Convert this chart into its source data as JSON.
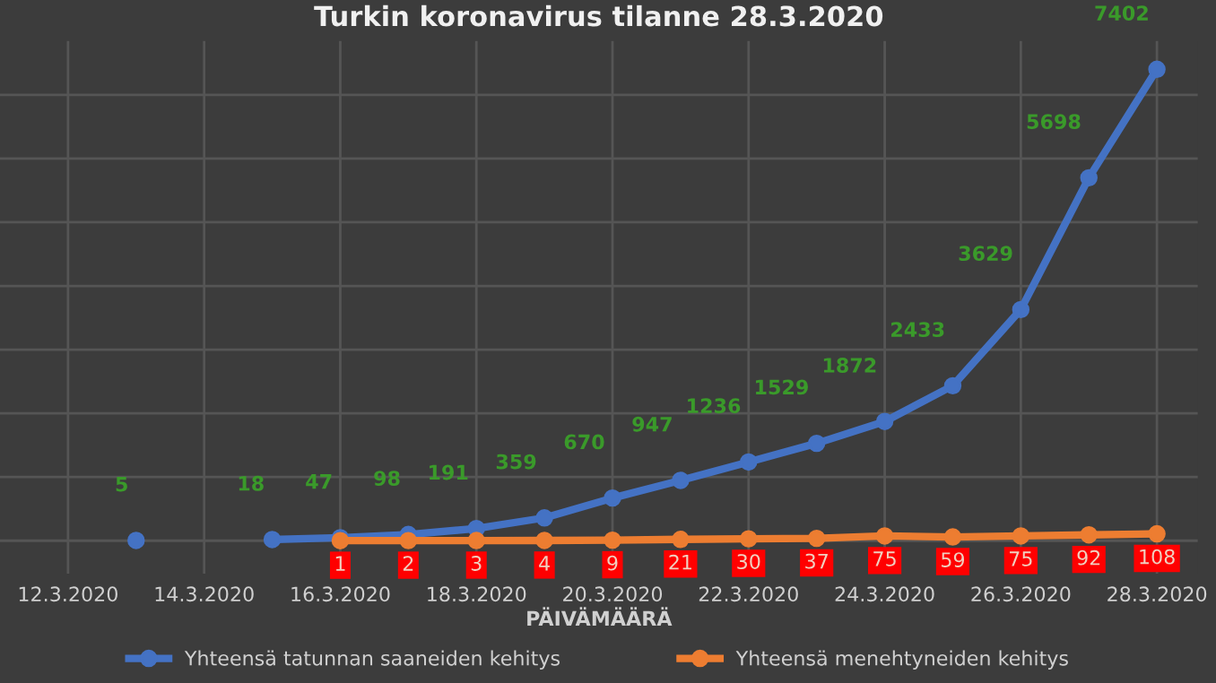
{
  "chart_data": {
    "type": "line",
    "title": "Turkin koronavirus tilanne 28.3.2020",
    "xlabel": "PÄIVÄMÄÄRÄ",
    "x": [
      "2020-03-13",
      "2020-03-14",
      "2020-03-15",
      "2020-03-16",
      "2020-03-17",
      "2020-03-18",
      "2020-03-19",
      "2020-03-20",
      "2020-03-21",
      "2020-03-22",
      "2020-03-23",
      "2020-03-24",
      "2020-03-25",
      "2020-03-26",
      "2020-03-27",
      "2020-03-28"
    ],
    "series": [
      {
        "name": "Yhteensä tatunnan saaneiden kehitys",
        "color": "#4472c4",
        "values": [
          5,
          null,
          18,
          47,
          98,
          191,
          359,
          670,
          947,
          1236,
          1529,
          1872,
          2433,
          3629,
          5698,
          7402
        ]
      },
      {
        "name": "Yhteensä menehtyneiden kehitys",
        "color": "#ed7d31",
        "x": [
          "2020-03-16",
          "2020-03-17",
          "2020-03-18",
          "2020-03-19",
          "2020-03-20",
          "2020-03-21",
          "2020-03-22",
          "2020-03-23",
          "2020-03-24",
          "2020-03-25",
          "2020-03-26",
          "2020-03-27",
          "2020-03-28"
        ],
        "values": [
          1,
          2,
          3,
          4,
          9,
          21,
          30,
          37,
          75,
          59,
          75,
          92,
          108
        ]
      }
    ],
    "xlim": [
      "2020-03-11",
      "2020-03-28"
    ],
    "xticks": [
      {
        "value": "2020-03-12",
        "label": "12.3.2020"
      },
      {
        "value": "2020-03-14",
        "label": "14.3.2020"
      },
      {
        "value": "2020-03-16",
        "label": "16.3.2020"
      },
      {
        "value": "2020-03-18",
        "label": "18.3.2020"
      },
      {
        "value": "2020-03-20",
        "label": "20.3.2020"
      },
      {
        "value": "2020-03-22",
        "label": "22.3.2020"
      },
      {
        "value": "2020-03-24",
        "label": "24.3.2020"
      },
      {
        "value": "2020-03-26",
        "label": "26.3.2020"
      },
      {
        "value": "2020-03-28",
        "label": "28.3.2020"
      }
    ],
    "tick_labels": "x",
    "grid": true,
    "legend": "bottom",
    "marker": "circle",
    "line_style": "solid",
    "data_labels": true
  }
}
